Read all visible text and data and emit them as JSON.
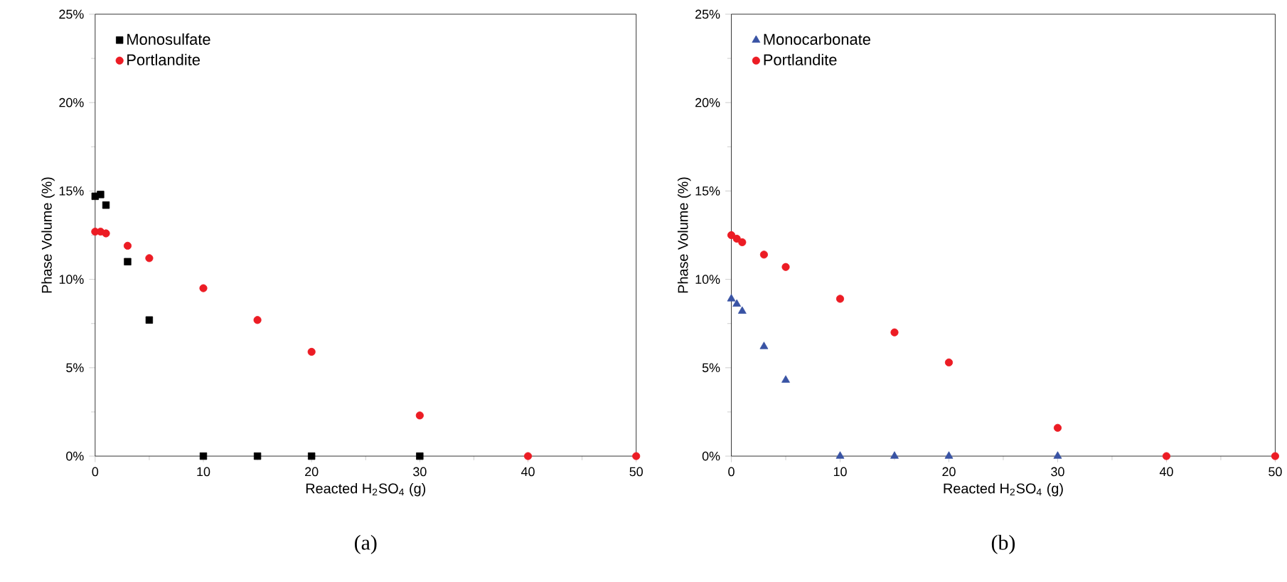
{
  "chart_data": [
    {
      "type": "scatter",
      "xlabel": "Reacted H$_{2}$SO$_{4}$ (g)",
      "ylabel": "Phase Volume (%)",
      "annotations": [
        "(a)"
      ],
      "x": [
        0,
        0.5,
        1,
        3,
        5,
        10,
        15,
        20,
        30,
        40,
        50
      ],
      "series": [
        {
          "name": "Monosulfate",
          "color": "#000000",
          "marker": "square",
          "values": [
            14.7,
            14.8,
            14.2,
            11.0,
            7.7,
            0,
            0,
            0,
            0,
            null,
            null
          ]
        },
        {
          "name": "Portlandite",
          "color": "#ec1c24",
          "marker": "circle",
          "values": [
            12.7,
            12.7,
            12.6,
            11.9,
            11.2,
            9.5,
            7.7,
            5.9,
            2.3,
            0,
            0
          ]
        }
      ],
      "xlim": [
        0,
        50
      ],
      "xticks": [
        0,
        10,
        20,
        30,
        40,
        50
      ],
      "ylim": [
        0,
        25
      ],
      "yticks": [
        {
          "value": 0,
          "label": "0%"
        },
        {
          "value": 5,
          "label": "5%"
        },
        {
          "value": 10,
          "label": "10%"
        },
        {
          "value": 15,
          "label": "15%"
        },
        {
          "value": 20,
          "label": "20%"
        },
        {
          "value": 25,
          "label": "25%"
        }
      ],
      "legend": "top left",
      "grid": false
    },
    {
      "type": "scatter",
      "xlabel": "Reacted H$_{2}$SO$_{4}$ (g)",
      "ylabel": "Phase Volume (%)",
      "annotations": [
        "(b)"
      ],
      "x": [
        0,
        0.5,
        1,
        3,
        5,
        10,
        15,
        20,
        30,
        40,
        50
      ],
      "series": [
        {
          "name": "Monocarbonate",
          "color": "#3953a4",
          "marker": "triangle",
          "values": [
            8.9,
            8.6,
            8.2,
            6.2,
            4.3,
            0,
            0,
            0,
            0,
            null,
            null
          ]
        },
        {
          "name": "Portlandite",
          "color": "#ec1c24",
          "marker": "circle",
          "values": [
            12.5,
            12.3,
            12.1,
            11.4,
            10.7,
            8.9,
            7.0,
            5.3,
            1.6,
            0,
            0
          ]
        }
      ],
      "xlim": [
        0,
        50
      ],
      "xticks": [
        0,
        10,
        20,
        30,
        40,
        50
      ],
      "ylim": [
        0,
        25
      ],
      "yticks": [
        {
          "value": 0,
          "label": "0%"
        },
        {
          "value": 5,
          "label": "5%"
        },
        {
          "value": 10,
          "label": "10%"
        },
        {
          "value": 15,
          "label": "15%"
        },
        {
          "value": 20,
          "label": "20%"
        },
        {
          "value": 25,
          "label": "25%"
        }
      ],
      "legend": "top left",
      "grid": false
    }
  ]
}
